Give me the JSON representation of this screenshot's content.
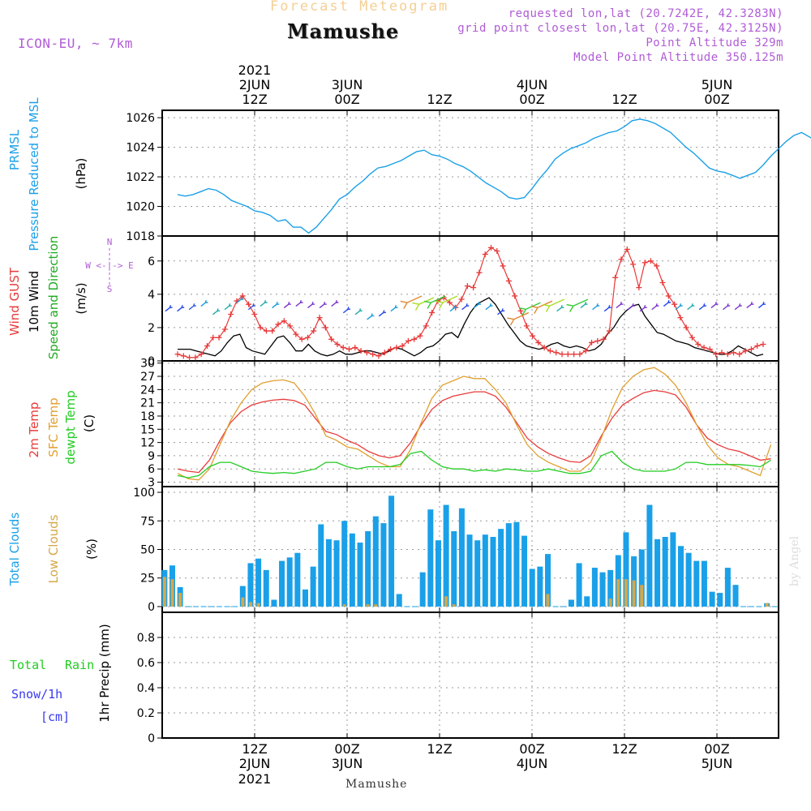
{
  "header": {
    "title_top": "Forecast Meteogram",
    "location": "Mamushe",
    "model": "ICON-EU, ~ 7km",
    "requested": "requested lon,lat (20.7242E, 42.3283N)",
    "gridpoint": "grid point closest lon,lat (20.75E, 42.3125N)",
    "point_alt": "Point Altitude 329m",
    "model_alt": "Model Point Altitude 350.125m",
    "footer_location": "Mamushe",
    "watermark": "by Angel"
  },
  "colors": {
    "pressure": "#1aa0e8",
    "gust": "#e83a3a",
    "wind": "#000000",
    "t2m": "#e83a3a",
    "sfc": "#e0a030",
    "dewpt": "#22cc22",
    "total_clouds": "#1aa0e8",
    "low_clouds": "#d4a84a",
    "rain": "#22cc22",
    "snow": "#3a3aee",
    "label_purple": "#b05cd6"
  },
  "chart_data": [
    {
      "type": "line",
      "panel": "pressure",
      "ylabel_lines": [
        "PRMSL",
        "Pressure Reduced to MSL"
      ],
      "unit": "(hPa)",
      "ylim": [
        1018,
        1026.5
      ],
      "yticks": [
        1018,
        1020,
        1022,
        1024,
        1026
      ],
      "x_start_hours": 2,
      "x_step_hours": 1,
      "values": [
        1020.8,
        1020.7,
        1020.8,
        1021.0,
        1021.2,
        1021.1,
        1020.8,
        1020.4,
        1020.2,
        1020.0,
        1019.7,
        1019.6,
        1019.4,
        1019.0,
        1019.1,
        1018.6,
        1018.6,
        1018.2,
        1018.6,
        1019.2,
        1019.8,
        1020.5,
        1020.8,
        1021.3,
        1021.7,
        1022.2,
        1022.6,
        1022.7,
        1022.9,
        1023.1,
        1023.4,
        1023.7,
        1023.8,
        1023.5,
        1023.4,
        1023.2,
        1022.9,
        1022.7,
        1022.4,
        1022.0,
        1021.6,
        1021.3,
        1021.0,
        1020.6,
        1020.5,
        1020.6,
        1021.2,
        1021.9,
        1022.5,
        1023.2,
        1023.6,
        1023.9,
        1024.1,
        1024.3,
        1024.6,
        1024.8,
        1025.0,
        1025.1,
        1025.4,
        1025.8,
        1025.9,
        1025.8,
        1025.6,
        1025.3,
        1025.0,
        1024.5,
        1024.0,
        1023.6,
        1023.1,
        1022.6,
        1022.4,
        1022.3,
        1022.1,
        1021.9,
        1022.1,
        1022.3,
        1022.8,
        1023.4,
        1023.9,
        1024.4,
        1024.8,
        1025.0,
        1024.7,
        1024.4,
        1024.2,
        1024.0,
        1024.1,
        1024.3,
        1024.6,
        1024.5
      ]
    },
    {
      "type": "line",
      "panel": "wind",
      "ylabel_lines": [
        "Wind GUST",
        "10m Wind",
        "Speed and Direction"
      ],
      "unit": "(m/s)",
      "compass": [
        "N",
        "W <-|-> E",
        "S"
      ],
      "ylim": [
        0,
        7.5
      ],
      "yticks": [
        0,
        2,
        4,
        6
      ],
      "x_start_hours": 2,
      "x_step_hours": 1,
      "series": [
        {
          "name": "Wind GUST",
          "values": [
            0.4,
            0.3,
            0.2,
            0.2,
            0.4,
            0.9,
            1.4,
            1.4,
            1.9,
            2.8,
            3.6,
            3.9,
            3.4,
            2.8,
            2.0,
            1.8,
            1.8,
            2.2,
            2.4,
            2.1,
            1.6,
            1.3,
            1.4,
            1.8,
            2.6,
            2.0,
            1.3,
            1.0,
            0.8,
            0.7,
            0.8,
            0.6,
            0.5,
            0.4,
            0.3,
            0.5,
            0.7,
            0.8,
            0.9,
            1.2,
            1.3,
            1.5,
            2.1,
            2.9,
            3.6,
            3.8,
            3.5,
            3.2,
            3.7,
            4.5,
            4.4,
            5.3,
            6.4,
            6.8,
            6.6,
            5.7,
            4.8,
            3.9,
            3.0,
            2.1,
            1.5,
            1.1,
            0.8,
            0.6,
            0.5,
            0.4,
            0.4,
            0.4,
            0.4,
            0.6,
            1.1,
            1.2,
            1.3,
            1.8,
            5.0,
            6.1,
            6.7,
            5.8,
            4.4,
            5.9,
            6.0,
            5.7,
            4.7,
            3.9,
            3.4,
            2.6,
            2.0,
            1.4,
            1.0,
            0.8,
            0.7,
            0.4,
            0.5,
            0.4,
            0.5,
            0.4,
            0.6,
            0.7,
            0.9,
            1.0
          ]
        },
        {
          "name": "10m Wind",
          "values": [
            0.7,
            0.7,
            0.7,
            0.6,
            0.5,
            0.4,
            0.3,
            0.6,
            1.1,
            1.5,
            1.6,
            0.8,
            0.6,
            0.5,
            0.4,
            0.9,
            1.4,
            1.5,
            1.1,
            0.6,
            0.6,
            1.0,
            0.6,
            0.4,
            0.3,
            0.4,
            0.6,
            0.4,
            0.4,
            0.5,
            0.6,
            0.6,
            0.5,
            0.4,
            0.6,
            0.8,
            0.7,
            0.5,
            0.3,
            0.5,
            0.8,
            0.9,
            1.2,
            1.6,
            1.7,
            1.4,
            2.2,
            2.9,
            3.4,
            3.6,
            3.8,
            3.4,
            2.8,
            2.2,
            1.7,
            1.2,
            0.9,
            0.8,
            0.7,
            0.8,
            1.0,
            1.1,
            0.9,
            0.8,
            0.9,
            0.8,
            0.6,
            0.7,
            1.0,
            1.6,
            2.0,
            2.6,
            3.0,
            3.3,
            3.4,
            2.7,
            2.2,
            1.7,
            1.6,
            1.4,
            1.2,
            1.1,
            1.0,
            0.8,
            0.7,
            0.6,
            0.5,
            0.4,
            0.4,
            0.6,
            0.9,
            0.7,
            0.5,
            0.3,
            0.4
          ]
        }
      ],
      "arrows": {
        "y_values": [
          3.2,
          3.2,
          3.3,
          3.5,
          3.0,
          3.3,
          3.7,
          3.3,
          3.5,
          3.4,
          3.4,
          3.5,
          3.4,
          3.4,
          3.5,
          3.1,
          3.0,
          2.7,
          2.9,
          3.2,
          3.5,
          3.4,
          3.5,
          3.5,
          3.2,
          3.3,
          3.4,
          3.3,
          3.0,
          2.5,
          3.1,
          3.2,
          3.3,
          3.2,
          3.3,
          3.4,
          3.3,
          3.2,
          3.4,
          3.3,
          3.2,
          3.3,
          3.5,
          3.3,
          3.3,
          3.3,
          3.4,
          3.3,
          3.3,
          3.4,
          3.4
        ],
        "colors": [
          "#2244ee",
          "#2244ee",
          "#3355dd",
          "#1a9ad8",
          "#22aaaa",
          "#22aaaa",
          "#1a9ad8",
          "#3355dd",
          "#22aaaa",
          "#1a9ad8",
          "#7a33cc",
          "#7a33cc",
          "#7a33cc",
          "#7a33cc",
          "#7a33cc",
          "#2244ee",
          "#22aaaa",
          "#1a9ad8",
          "#2244ee",
          "#1a9ad8",
          "#e08830",
          "#aadd22",
          "#33cc33",
          "#aadd22",
          "#1a9ad8",
          "#2244ee",
          "#1a9ad8",
          "#1a9ad8",
          "#2244ee",
          "#e08830",
          "#33cc33",
          "#e08830",
          "#aadd22",
          "#22aaaa",
          "#33cc33",
          "#22aaaa",
          "#1a9ad8",
          "#2244ee",
          "#7a33cc",
          "#7a33cc",
          "#7a33cc",
          "#7a33cc",
          "#2244ee",
          "#1a9ad8",
          "#22aaaa",
          "#2244ee",
          "#7a33cc",
          "#7a33cc",
          "#7a33cc",
          "#7a33cc",
          "#2244ee"
        ]
      }
    },
    {
      "type": "line",
      "panel": "temperature",
      "ylabel_lines": [
        "2m Temp",
        "SFC Temp",
        "dewpt Temp"
      ],
      "unit": "(C)",
      "ylim": [
        2,
        30.5
      ],
      "yticks": [
        3,
        6,
        9,
        12,
        15,
        18,
        21,
        24,
        27,
        30
      ],
      "x_start_hours": 2,
      "x_step_hours": 3,
      "series": [
        {
          "name": "2m Temp",
          "values": [
            6.0,
            5.5,
            5.2,
            8.0,
            12.5,
            16.5,
            19.0,
            20.5,
            21.2,
            21.6,
            21.8,
            21.5,
            20.5,
            17.5,
            14.5,
            13.8,
            12.5,
            11.5,
            10.0,
            9.0,
            8.5,
            9.0,
            12.0,
            16.0,
            19.5,
            21.5,
            22.5,
            23.0,
            23.5,
            23.5,
            22.5,
            20.0,
            16.5,
            13.0,
            11.0,
            9.5,
            8.5,
            7.7,
            7.5,
            9.0,
            13.5,
            17.5,
            20.5,
            22.0,
            23.3,
            23.8,
            23.5,
            22.8,
            20.0,
            16.0,
            13.0,
            11.5,
            10.5,
            10.0,
            9.0,
            8.0,
            8.3
          ]
        },
        {
          "name": "SFC Temp",
          "values": [
            5.0,
            3.8,
            3.5,
            6.0,
            11.5,
            17.0,
            21.0,
            24.0,
            25.5,
            26.0,
            26.2,
            25.5,
            22.5,
            18.5,
            13.5,
            12.5,
            11.0,
            10.5,
            9.0,
            7.5,
            6.5,
            6.5,
            10.5,
            16.5,
            22.0,
            25.0,
            26.0,
            27.0,
            26.5,
            26.5,
            24.0,
            21.0,
            16.0,
            11.5,
            9.0,
            7.5,
            6.5,
            5.5,
            5.5,
            7.5,
            13.0,
            19.5,
            24.5,
            27.0,
            28.5,
            29.0,
            27.5,
            25.0,
            21.0,
            16.0,
            11.5,
            8.5,
            7.0,
            6.5,
            5.5,
            4.5,
            11.5
          ]
        },
        {
          "name": "dewpt Temp",
          "values": [
            4.5,
            4.0,
            4.5,
            6.5,
            7.5,
            7.5,
            6.5,
            5.5,
            5.2,
            5.0,
            5.2,
            5.0,
            5.5,
            6.0,
            7.5,
            7.5,
            6.5,
            6.0,
            6.5,
            6.5,
            6.5,
            7.0,
            9.5,
            10.0,
            8.0,
            6.5,
            6.0,
            6.0,
            5.5,
            5.8,
            5.5,
            6.0,
            5.8,
            5.5,
            5.5,
            6.0,
            5.5,
            5.0,
            5.0,
            5.5,
            9.0,
            10.0,
            7.5,
            6.0,
            5.5,
            5.5,
            5.5,
            6.0,
            7.5,
            7.5,
            7.0,
            7.0,
            7.0,
            7.0,
            6.8,
            6.5,
            8.0
          ]
        }
      ]
    },
    {
      "type": "bar",
      "panel": "clouds",
      "ylabel_lines": [
        "Total Clouds",
        "Low Clouds"
      ],
      "unit": "(%)",
      "ylim": [
        -5,
        105
      ],
      "yticks": [
        0,
        25,
        50,
        75,
        100
      ],
      "x_start_hours": 1,
      "x_step_hours": 2,
      "series": [
        {
          "name": "Total Clouds",
          "values": [
            32,
            36,
            17,
            0,
            0,
            0,
            0,
            0,
            0,
            0,
            18,
            38,
            42,
            32,
            6,
            40,
            43,
            47,
            15,
            35,
            72,
            59,
            58,
            75,
            64,
            56,
            66,
            79,
            73,
            97,
            11,
            0,
            0,
            30,
            85,
            58,
            89,
            66,
            86,
            63,
            58,
            63,
            61,
            68,
            73,
            74,
            62,
            33,
            35,
            46,
            0,
            0,
            6,
            38,
            9,
            34,
            30,
            32,
            45,
            65,
            44,
            50,
            89,
            59,
            61,
            65,
            53,
            47,
            40,
            40,
            13,
            12,
            34,
            19,
            0,
            0,
            0,
            3,
            0
          ]
        },
        {
          "name": "Low Clouds",
          "values": [
            26,
            24,
            12,
            0,
            0,
            0,
            0,
            0,
            0,
            0,
            8,
            4,
            3,
            0,
            0,
            0,
            0,
            0,
            0,
            0,
            0,
            0,
            0,
            2,
            0,
            0,
            2,
            2,
            0,
            0,
            0,
            0,
            0,
            0,
            0,
            0,
            9,
            2,
            0,
            0,
            0,
            0,
            0,
            0,
            0,
            0,
            0,
            0,
            0,
            11,
            0,
            0,
            0,
            0,
            0,
            0,
            0,
            7,
            24,
            24,
            23,
            19,
            0,
            0,
            0,
            0,
            0,
            0,
            0,
            0,
            0,
            0,
            0,
            0,
            0,
            0,
            0,
            3,
            0
          ]
        }
      ]
    },
    {
      "type": "bar",
      "panel": "precip",
      "ylabel_lines": [
        "Total",
        "Rain",
        "Snow/1h",
        "[cm]"
      ],
      "unit": "1hr Precip (mm)",
      "ylim": [
        0,
        1
      ],
      "yticks": [
        "0",
        "0.2",
        "0.4",
        "0.6",
        "0.8"
      ],
      "values": []
    }
  ],
  "time_axis": {
    "top_ticks": [
      {
        "hours": 12,
        "day": "2JUN",
        "time": "12Z",
        "year": "2021"
      },
      {
        "hours": 24,
        "day": "3JUN",
        "time": "00Z",
        "year": ""
      },
      {
        "hours": 36,
        "day": "",
        "time": "12Z",
        "year": ""
      },
      {
        "hours": 48,
        "day": "4JUN",
        "time": "00Z",
        "year": ""
      },
      {
        "hours": 60,
        "day": "",
        "time": "12Z",
        "year": ""
      },
      {
        "hours": 72,
        "day": "5JUN",
        "time": "00Z",
        "year": ""
      }
    ],
    "bottom_ticks": [
      {
        "hours": 12,
        "time": "12Z",
        "day": "2JUN",
        "year": "2021"
      },
      {
        "hours": 24,
        "time": "00Z",
        "day": "3JUN",
        "year": ""
      },
      {
        "hours": 36,
        "time": "12Z",
        "day": "",
        "year": ""
      },
      {
        "hours": 48,
        "time": "00Z",
        "day": "4JUN",
        "year": ""
      },
      {
        "hours": 60,
        "time": "12Z",
        "day": "",
        "year": ""
      },
      {
        "hours": 72,
        "time": "00Z",
        "day": "5JUN",
        "year": ""
      }
    ]
  }
}
